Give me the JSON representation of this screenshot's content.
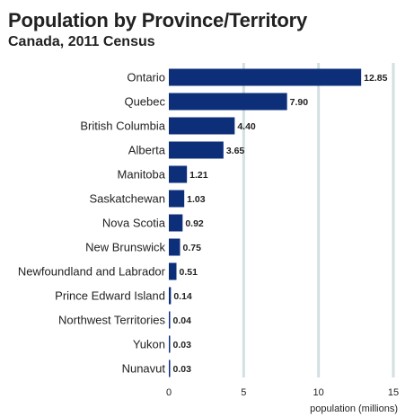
{
  "chart_data": {
    "type": "bar",
    "orientation": "horizontal",
    "title": "Population by Province/Territory",
    "subtitle": "Canada, 2011 Census",
    "categories": [
      "Ontario",
      "Quebec",
      "British Columbia",
      "Alberta",
      "Manitoba",
      "Saskatchewan",
      "Nova Scotia",
      "New Brunswick",
      "Newfoundland and Labrador",
      "Prince Edward Island",
      "Northwest Territories",
      "Yukon",
      "Nunavut"
    ],
    "values": [
      12.85,
      7.9,
      4.4,
      3.65,
      1.21,
      1.03,
      0.92,
      0.75,
      0.51,
      0.14,
      0.04,
      0.03,
      0.03
    ],
    "value_labels": [
      "12.85",
      "7.90",
      "4.40",
      "3.65",
      "1.21",
      "1.03",
      "0.92",
      "0.75",
      "0.51",
      "0.14",
      "0.04",
      "0.03",
      "0.03"
    ],
    "xlabel": "population (millions)",
    "ylabel": "",
    "xlim": [
      0,
      15
    ],
    "xticks": [
      0,
      5,
      10,
      15
    ],
    "xtick_labels": [
      "0",
      "5",
      "10",
      "15"
    ],
    "grid": true,
    "legend": "none",
    "colors": {
      "bar": "#0d2f7a",
      "grid": "#d3dfe0",
      "text": "#222222"
    }
  }
}
